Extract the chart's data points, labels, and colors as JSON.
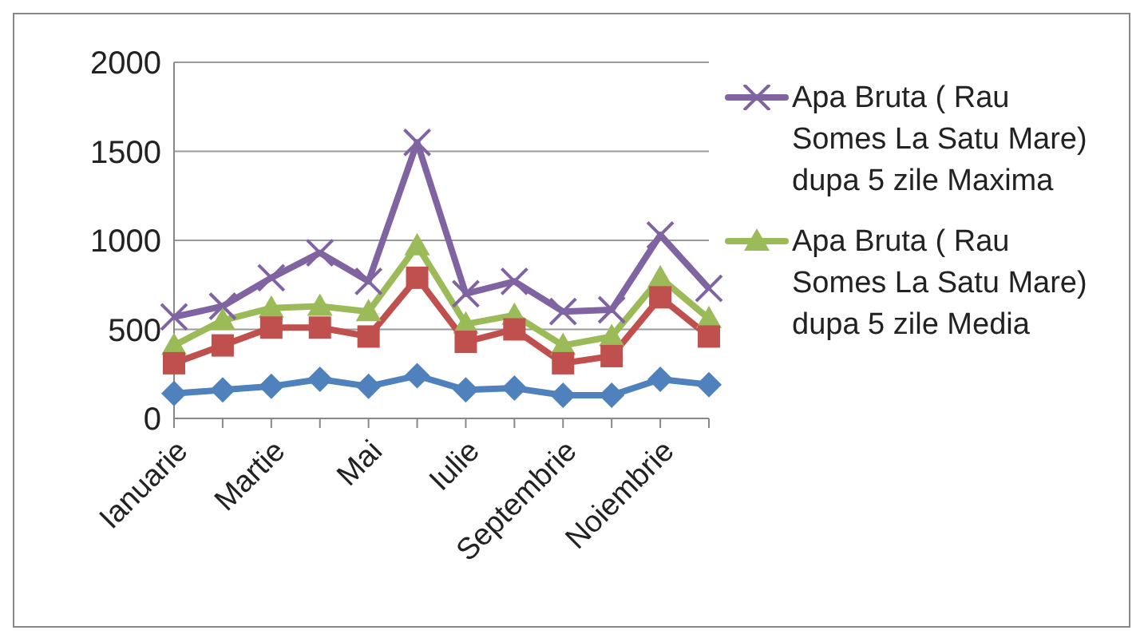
{
  "chart_data": {
    "type": "line",
    "categories": [
      "Ianuarie",
      null,
      "Martie",
      null,
      "Mai",
      null,
      "Iulie",
      null,
      "Septembrie",
      null,
      "Noiembrie",
      null
    ],
    "series": [
      {
        "name": "Apa Bruta ( Rau Somes La Satu Mare) dupa 5 zile  Maxima",
        "color": "#8064a2",
        "marker": "cross",
        "values": [
          570,
          630,
          790,
          930,
          770,
          1550,
          700,
          770,
          600,
          610,
          1030,
          730
        ]
      },
      {
        "name": "Apa Bruta ( Rau Somes La Satu Mare) dupa 5 zile  Media",
        "color": "#9bbb59",
        "marker": "triangle",
        "values": [
          410,
          550,
          620,
          630,
          600,
          970,
          530,
          580,
          410,
          460,
          790,
          560
        ]
      },
      {
        "color": "#c0504d",
        "marker": "square",
        "values": [
          310,
          410,
          510,
          510,
          460,
          790,
          430,
          500,
          310,
          350,
          680,
          460
        ]
      },
      {
        "color": "#4f81bd",
        "marker": "diamond",
        "values": [
          140,
          160,
          180,
          220,
          180,
          240,
          160,
          170,
          130,
          130,
          220,
          190
        ]
      }
    ],
    "ylim": [
      0,
      2000
    ],
    "yticks": [
      0,
      500,
      1000,
      1500,
      2000
    ],
    "grid": "y",
    "legend": "right"
  }
}
